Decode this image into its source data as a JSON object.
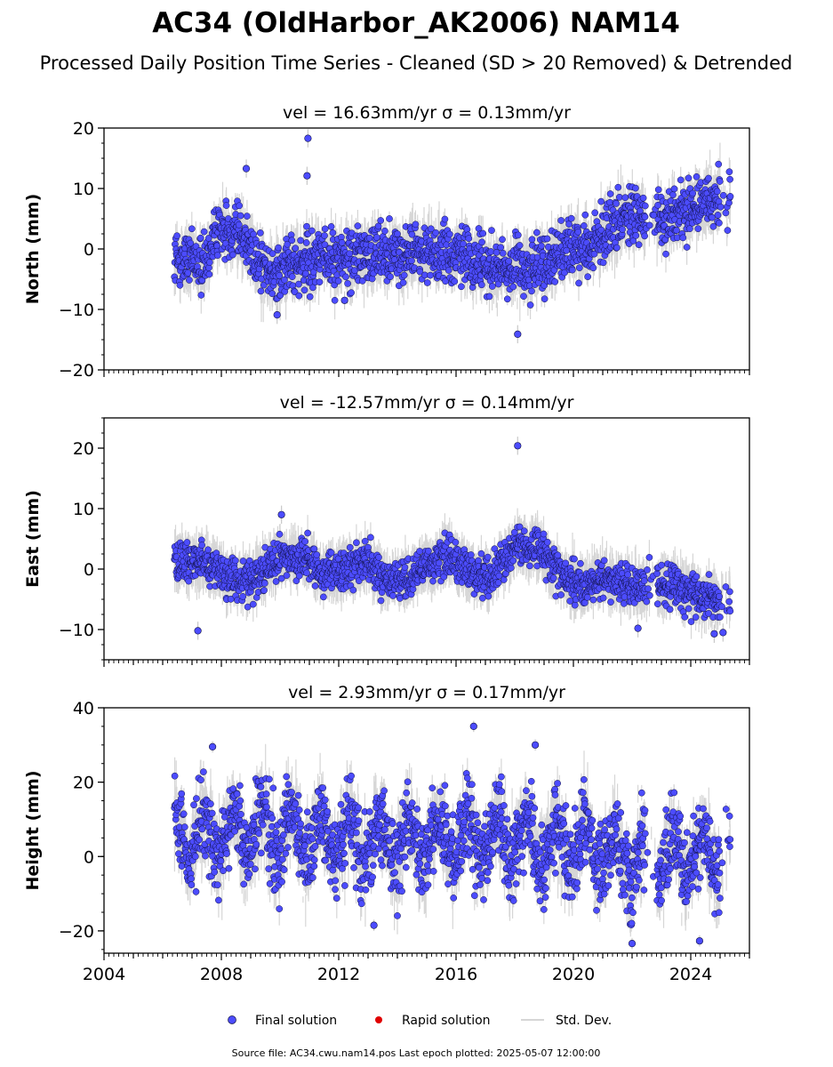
{
  "title": "AC34 (OldHarbor_AK2006) NAM14",
  "subtitle": "Processed Daily Position Time Series - Cleaned (SD > 20 Removed) & Detrended",
  "footer": "Source file: AC34.cwu.nam14.pos  Last epoch plotted: 2025-05-07 12:00:00",
  "colors": {
    "final": "#4c4cff",
    "rapid": "#e00000",
    "stddev": "#c8c8c8",
    "edge": "#111144"
  },
  "chart_data": [
    {
      "type": "scatter",
      "panel": "north",
      "title": "vel = 16.63mm/yr   σ = 0.13mm/yr",
      "ylabel": "North (mm)",
      "ylim": [
        -20,
        20
      ],
      "yticks": [
        -20,
        -10,
        0,
        10,
        20
      ],
      "xlim": [
        2004.0,
        2026.0
      ],
      "data_range": [
        2006.4,
        2025.35
      ],
      "trend_knots": [
        [
          2006.4,
          -1.5
        ],
        [
          2007.3,
          -2.5
        ],
        [
          2007.9,
          3
        ],
        [
          2008.7,
          2
        ],
        [
          2009.6,
          -4
        ],
        [
          2011,
          -2
        ],
        [
          2013,
          -1
        ],
        [
          2015,
          -0.5
        ],
        [
          2016.5,
          -1.5
        ],
        [
          2017.5,
          -3.5
        ],
        [
          2018.7,
          -3
        ],
        [
          2019.7,
          0
        ],
        [
          2020.6,
          1
        ],
        [
          2021.8,
          5
        ],
        [
          2022.3,
          5.5
        ],
        [
          2023,
          5
        ],
        [
          2024,
          7
        ],
        [
          2025.35,
          8.5
        ]
      ],
      "scatter_sd": 2.3,
      "outliers": [
        [
          2008.85,
          13.3
        ],
        [
          2010.95,
          18.3
        ],
        [
          2010.92,
          12.1
        ],
        [
          2018.1,
          -14.1
        ],
        [
          2012.2,
          -8.5
        ],
        [
          2009.9,
          -10.9
        ]
      ]
    },
    {
      "type": "scatter",
      "panel": "east",
      "title": "vel = -12.57mm/yr   σ = 0.14mm/yr",
      "ylabel": "East (mm)",
      "ylim": [
        -15,
        25
      ],
      "yticks": [
        -10,
        0,
        10,
        20
      ],
      "xlim": [
        2004.0,
        2026.0
      ],
      "data_range": [
        2006.4,
        2025.35
      ],
      "trend_knots": [
        [
          2006.4,
          1
        ],
        [
          2007.3,
          1.5
        ],
        [
          2008.3,
          -2
        ],
        [
          2009,
          -2
        ],
        [
          2010,
          2
        ],
        [
          2010.8,
          2
        ],
        [
          2011.5,
          -1
        ],
        [
          2012.3,
          0
        ],
        [
          2013,
          1
        ],
        [
          2013.6,
          -2
        ],
        [
          2014.5,
          -1
        ],
        [
          2015.6,
          2
        ],
        [
          2016.2,
          1
        ],
        [
          2016.6,
          -1
        ],
        [
          2017.2,
          -1
        ],
        [
          2018.1,
          4
        ],
        [
          2018.8,
          3
        ],
        [
          2019.6,
          -1
        ],
        [
          2020.2,
          -3
        ],
        [
          2021,
          -1
        ],
        [
          2022,
          -3
        ],
        [
          2023.5,
          -3
        ],
        [
          2024.5,
          -5
        ],
        [
          2025.35,
          -5
        ]
      ],
      "scatter_sd": 1.6,
      "outliers": [
        [
          2018.1,
          20.4
        ],
        [
          2007.2,
          -10.2
        ],
        [
          2010.05,
          9
        ],
        [
          2024.8,
          -10.7
        ],
        [
          2025.1,
          -10.5
        ],
        [
          2022.2,
          -9.8
        ]
      ]
    },
    {
      "type": "scatter",
      "panel": "height",
      "title": "vel = 2.93mm/yr   σ = 0.17mm/yr",
      "ylabel": "Height (mm)",
      "ylim": [
        -26,
        40
      ],
      "yticks": [
        -20,
        0,
        20,
        40
      ],
      "xlim": [
        2004.0,
        2026.0
      ],
      "data_range": [
        2006.4,
        2025.35
      ],
      "trend_knots": [
        [
          2006.4,
          5
        ],
        [
          2010,
          6
        ],
        [
          2014,
          4
        ],
        [
          2018,
          5
        ],
        [
          2021,
          2
        ],
        [
          2022.3,
          -2
        ],
        [
          2023,
          1
        ],
        [
          2025.35,
          0
        ]
      ],
      "seasonal_amp": 6,
      "scatter_sd": 5.5,
      "outliers": [
        [
          2016.6,
          35
        ],
        [
          2018.7,
          30
        ],
        [
          2007.7,
          29.5
        ],
        [
          2022.0,
          -23.4
        ],
        [
          2024.3,
          -22.7
        ],
        [
          2013.2,
          -18.5
        ]
      ],
      "xticks": [
        2004,
        2008,
        2012,
        2016,
        2020,
        2024
      ]
    }
  ],
  "legend": [
    {
      "label": "Final solution",
      "marker": "final"
    },
    {
      "label": "Rapid solution",
      "marker": "rapid"
    },
    {
      "label": "Std. Dev.",
      "marker": "stddev"
    }
  ]
}
